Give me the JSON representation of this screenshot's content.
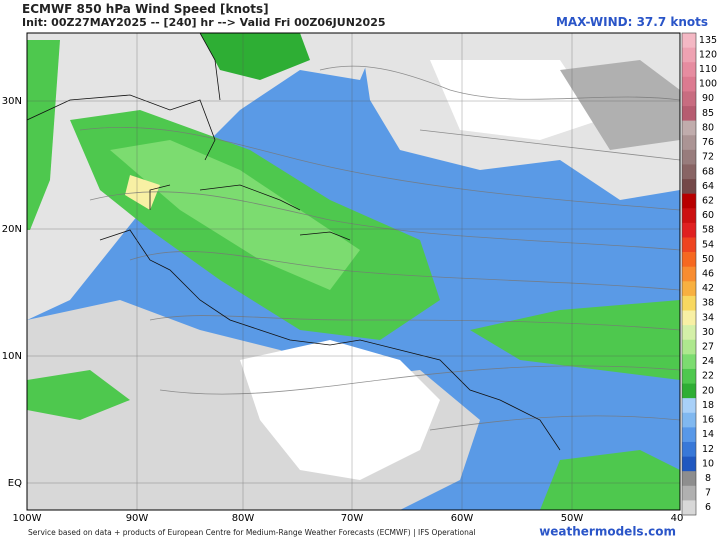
{
  "header": {
    "title": "ECMWF 850 hPa Wind Speed [knots]",
    "init": "Init: 00Z27MAY2025 -- [240] hr --> Valid Fri 00Z06JUN2025",
    "max_wind": "MAX-WIND: 37.7 knots"
  },
  "map": {
    "lat_labels": [
      "30N",
      "20N",
      "10N",
      "EQ"
    ],
    "lon_labels": [
      "100W",
      "90W",
      "80W",
      "70W",
      "60W",
      "50W",
      "40"
    ]
  },
  "colorbar": {
    "levels": [
      {
        "label": "135",
        "color": "#f4b8c4"
      },
      {
        "label": "120",
        "color": "#eea2b2"
      },
      {
        "label": "110",
        "color": "#e68ca0"
      },
      {
        "label": "100",
        "color": "#dc7a90"
      },
      {
        "label": "90",
        "color": "#c86c80"
      },
      {
        "label": "85",
        "color": "#b65c70"
      },
      {
        "label": "80",
        "color": "#c0acac"
      },
      {
        "label": "76",
        "color": "#ab9494"
      },
      {
        "label": "72",
        "color": "#987c7c"
      },
      {
        "label": "68",
        "color": "#886464"
      },
      {
        "label": "64",
        "color": "#744848"
      },
      {
        "label": "62",
        "color": "#b80000"
      },
      {
        "label": "60",
        "color": "#cc1010"
      },
      {
        "label": "58",
        "color": "#e02020"
      },
      {
        "label": "54",
        "color": "#ee4420"
      },
      {
        "label": "50",
        "color": "#f66820"
      },
      {
        "label": "46",
        "color": "#f88c30"
      },
      {
        "label": "42",
        "color": "#f8b040"
      },
      {
        "label": "38",
        "color": "#f8d860"
      },
      {
        "label": "34",
        "color": "#f8f0a4"
      },
      {
        "label": "30",
        "color": "#d4f0a8"
      },
      {
        "label": "27",
        "color": "#aee88e"
      },
      {
        "label": "24",
        "color": "#7cdc70"
      },
      {
        "label": "22",
        "color": "#4ec84e"
      },
      {
        "label": "20",
        "color": "#2eae34"
      },
      {
        "label": "18",
        "color": "#a8d0f8"
      },
      {
        "label": "16",
        "color": "#80b8f0"
      },
      {
        "label": "14",
        "color": "#5898e8"
      },
      {
        "label": "12",
        "color": "#3878d8"
      },
      {
        "label": "10",
        "color": "#2058c0"
      },
      {
        "label": "8",
        "color": "#8e8e8e"
      },
      {
        "label": "7",
        "color": "#b0b0b0"
      },
      {
        "label": "6",
        "color": "#d8d8d8"
      }
    ]
  },
  "footer": {
    "credit": "Service based on data + products of European Centre for Medium-Range Weather Forecasts (ECMWF) | IFS Operational",
    "site": "weathermodels.com"
  }
}
